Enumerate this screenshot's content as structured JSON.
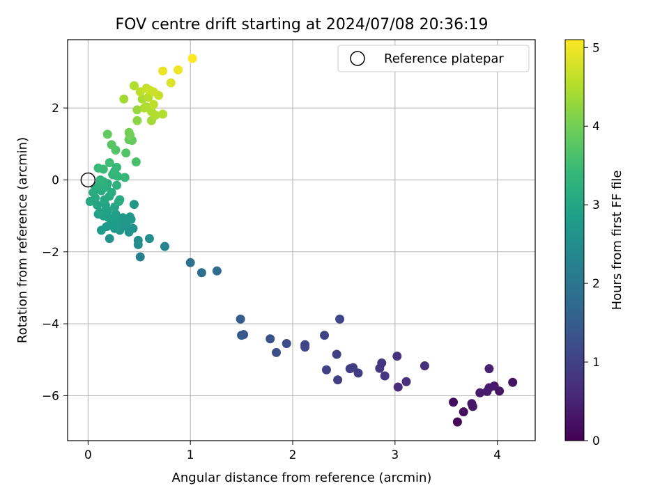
{
  "chart_data": {
    "type": "scatter",
    "title": "FOV centre drift starting at 2024/07/08 20:36:19",
    "xlabel": "Angular distance from reference (arcmin)",
    "ylabel": "Rotation from reference (arcmin)",
    "xlim": [
      -0.2,
      4.37
    ],
    "ylim": [
      -7.25,
      3.9
    ],
    "xticks": [
      0,
      1,
      2,
      3,
      4
    ],
    "xtick_labels": [
      "0",
      "1",
      "2",
      "3",
      "4"
    ],
    "yticks": [
      -6,
      -4,
      -2,
      0,
      2
    ],
    "ytick_labels": [
      "−6",
      "−4",
      "−2",
      "0",
      "2"
    ],
    "grid": true,
    "legend": {
      "position": "top-right",
      "label": "Reference platepar"
    },
    "reference_point": {
      "x": 0,
      "y": 0
    },
    "colorbar": {
      "label": "Hours from first FF file",
      "colormap": "viridis",
      "range": [
        0,
        5.1
      ],
      "ticks": [
        0,
        1,
        2,
        3,
        4,
        5
      ],
      "tick_labels": [
        "0",
        "1",
        "2",
        "3",
        "4",
        "5"
      ],
      "stops": [
        "#440154",
        "#482878",
        "#3e4989",
        "#31688e",
        "#26828e",
        "#1f9e89",
        "#35b779",
        "#6ece58",
        "#b5de2b",
        "#fde725"
      ]
    },
    "points": [
      {
        "x": 4.15,
        "y": -5.63,
        "h": 0.25
      },
      {
        "x": 4.02,
        "y": -5.87,
        "h": 0.3
      },
      {
        "x": 3.97,
        "y": -5.73,
        "h": 0.35
      },
      {
        "x": 3.92,
        "y": -5.78,
        "h": 0.35
      },
      {
        "x": 3.9,
        "y": -5.88,
        "h": 0.4
      },
      {
        "x": 3.92,
        "y": -5.25,
        "h": 0.45
      },
      {
        "x": 3.83,
        "y": -5.92,
        "h": 0.4
      },
      {
        "x": 3.75,
        "y": -6.22,
        "h": 0.3
      },
      {
        "x": 3.76,
        "y": -6.3,
        "h": 0.3
      },
      {
        "x": 3.67,
        "y": -6.45,
        "h": 0.2
      },
      {
        "x": 3.57,
        "y": -6.18,
        "h": 0.15
      },
      {
        "x": 3.61,
        "y": -6.73,
        "h": 0.1
      },
      {
        "x": 3.29,
        "y": -5.17,
        "h": 0.7
      },
      {
        "x": 3.11,
        "y": -5.61,
        "h": 0.7
      },
      {
        "x": 3.03,
        "y": -5.76,
        "h": 0.65
      },
      {
        "x": 3.02,
        "y": -4.9,
        "h": 0.75
      },
      {
        "x": 2.9,
        "y": -5.45,
        "h": 0.8
      },
      {
        "x": 2.87,
        "y": -5.09,
        "h": 0.8
      },
      {
        "x": 2.85,
        "y": -5.24,
        "h": 0.8
      },
      {
        "x": 2.64,
        "y": -5.37,
        "h": 0.9
      },
      {
        "x": 2.59,
        "y": -5.22,
        "h": 0.95
      },
      {
        "x": 2.56,
        "y": -5.25,
        "h": 0.95
      },
      {
        "x": 2.44,
        "y": -5.56,
        "h": 0.95
      },
      {
        "x": 2.43,
        "y": -4.85,
        "h": 1.0
      },
      {
        "x": 2.46,
        "y": -3.87,
        "h": 1.1
      },
      {
        "x": 2.33,
        "y": -5.28,
        "h": 1.0
      },
      {
        "x": 2.31,
        "y": -4.32,
        "h": 1.05
      },
      {
        "x": 2.12,
        "y": -4.58,
        "h": 1.1
      },
      {
        "x": 2.12,
        "y": -4.65,
        "h": 1.1
      },
      {
        "x": 1.94,
        "y": -4.55,
        "h": 1.2
      },
      {
        "x": 1.84,
        "y": -4.8,
        "h": 1.25
      },
      {
        "x": 1.78,
        "y": -4.42,
        "h": 1.3
      },
      {
        "x": 1.52,
        "y": -4.3,
        "h": 1.4
      },
      {
        "x": 1.5,
        "y": -4.32,
        "h": 1.45
      },
      {
        "x": 1.49,
        "y": -3.87,
        "h": 1.5
      },
      {
        "x": 1.26,
        "y": -2.53,
        "h": 1.8
      },
      {
        "x": 1.11,
        "y": -2.58,
        "h": 1.85
      },
      {
        "x": 1.0,
        "y": -2.3,
        "h": 1.9
      },
      {
        "x": 0.75,
        "y": -1.85,
        "h": 2.3
      },
      {
        "x": 0.6,
        "y": -1.63,
        "h": 2.5
      },
      {
        "x": 0.51,
        "y": -2.14,
        "h": 2.2
      },
      {
        "x": 0.49,
        "y": -1.68,
        "h": 2.5
      },
      {
        "x": 0.49,
        "y": -1.8,
        "h": 2.5
      },
      {
        "x": 0.45,
        "y": -0.68,
        "h": 2.7
      },
      {
        "x": 0.44,
        "y": -1.35,
        "h": 2.6
      },
      {
        "x": 0.42,
        "y": -1.1,
        "h": 2.65
      },
      {
        "x": 0.41,
        "y": -1.03,
        "h": 2.7
      },
      {
        "x": 0.4,
        "y": -1.45,
        "h": 2.6
      },
      {
        "x": 0.38,
        "y": -1.3,
        "h": 2.65
      },
      {
        "x": 0.36,
        "y": -1.2,
        "h": 2.7
      },
      {
        "x": 0.34,
        "y": -1.05,
        "h": 2.7
      },
      {
        "x": 0.31,
        "y": -1.4,
        "h": 2.65
      },
      {
        "x": 0.29,
        "y": -1.25,
        "h": 2.75
      },
      {
        "x": 0.28,
        "y": -1.1,
        "h": 2.8
      },
      {
        "x": 0.27,
        "y": -0.95,
        "h": 2.85
      },
      {
        "x": 0.26,
        "y": -1.35,
        "h": 2.75
      },
      {
        "x": 0.24,
        "y": -1.15,
        "h": 2.8
      },
      {
        "x": 0.22,
        "y": -1.25,
        "h": 2.8
      },
      {
        "x": 0.21,
        "y": -1.63,
        "h": 2.6
      },
      {
        "x": 0.2,
        "y": -1.05,
        "h": 2.85
      },
      {
        "x": 0.19,
        "y": -0.85,
        "h": 2.9
      },
      {
        "x": 0.18,
        "y": -1.3,
        "h": 2.8
      },
      {
        "x": 0.17,
        "y": -0.7,
        "h": 2.95
      },
      {
        "x": 0.15,
        "y": -1.0,
        "h": 2.9
      },
      {
        "x": 0.13,
        "y": -1.4,
        "h": 2.8
      },
      {
        "x": 0.12,
        "y": -0.9,
        "h": 2.95
      },
      {
        "x": 0.1,
        "y": -0.95,
        "h": 2.9
      },
      {
        "x": 0.09,
        "y": -0.7,
        "h": 3.0
      },
      {
        "x": 0.07,
        "y": -0.5,
        "h": 3.05
      },
      {
        "x": 0.05,
        "y": -0.35,
        "h": 3.1
      },
      {
        "x": 0.02,
        "y": -0.6,
        "h": 3.05
      },
      {
        "x": 0.07,
        "y": -0.25,
        "h": 3.15
      },
      {
        "x": 0.1,
        "y": -0.15,
        "h": 3.2
      },
      {
        "x": 0.13,
        "y": -0.3,
        "h": 3.15
      },
      {
        "x": 0.15,
        "y": -0.05,
        "h": 3.25
      },
      {
        "x": 0.18,
        "y": -0.2,
        "h": 3.2
      },
      {
        "x": 0.21,
        "y": -0.45,
        "h": 3.1
      },
      {
        "x": 0.23,
        "y": -0.35,
        "h": 3.15
      },
      {
        "x": 0.26,
        "y": -0.75,
        "h": 3.0
      },
      {
        "x": 0.28,
        "y": -0.15,
        "h": 3.25
      },
      {
        "x": 0.3,
        "y": -0.6,
        "h": 3.1
      },
      {
        "x": 0.31,
        "y": -0.55,
        "h": 3.1
      },
      {
        "x": 0.12,
        "y": 0.0,
        "h": 3.3
      },
      {
        "x": 0.16,
        "y": -0.55,
        "h": 3.05
      },
      {
        "x": 0.19,
        "y": -0.1,
        "h": 3.2
      },
      {
        "x": 0.24,
        "y": 0.15,
        "h": 3.35
      },
      {
        "x": 0.28,
        "y": 0.35,
        "h": 3.4
      },
      {
        "x": 0.1,
        "y": 0.33,
        "h": 3.45
      },
      {
        "x": 0.15,
        "y": 0.3,
        "h": 3.45
      },
      {
        "x": 0.21,
        "y": 0.48,
        "h": 3.5
      },
      {
        "x": 0.26,
        "y": 0.25,
        "h": 3.4
      },
      {
        "x": 0.29,
        "y": 0.1,
        "h": 3.35
      },
      {
        "x": 0.36,
        "y": 0.07,
        "h": 3.4
      },
      {
        "x": 0.47,
        "y": 0.5,
        "h": 3.6
      },
      {
        "x": 0.23,
        "y": 0.98,
        "h": 3.75
      },
      {
        "x": 0.27,
        "y": 0.83,
        "h": 3.7
      },
      {
        "x": 0.37,
        "y": 0.75,
        "h": 3.7
      },
      {
        "x": 0.19,
        "y": 1.27,
        "h": 3.85
      },
      {
        "x": 0.43,
        "y": 1.1,
        "h": 3.85
      },
      {
        "x": 0.4,
        "y": 1.12,
        "h": 3.9
      },
      {
        "x": 0.4,
        "y": 1.32,
        "h": 4.0
      },
      {
        "x": 0.41,
        "y": 1.25,
        "h": 4.0
      },
      {
        "x": 0.48,
        "y": 1.65,
        "h": 4.2
      },
      {
        "x": 0.48,
        "y": 1.95,
        "h": 4.3
      },
      {
        "x": 0.35,
        "y": 2.25,
        "h": 4.4
      },
      {
        "x": 0.45,
        "y": 2.62,
        "h": 4.5
      },
      {
        "x": 0.53,
        "y": 2.25,
        "h": 4.45
      },
      {
        "x": 0.57,
        "y": 2.03,
        "h": 4.4
      },
      {
        "x": 0.59,
        "y": 2.3,
        "h": 4.55
      },
      {
        "x": 0.62,
        "y": 1.65,
        "h": 4.4
      },
      {
        "x": 0.62,
        "y": 1.9,
        "h": 4.5
      },
      {
        "x": 0.64,
        "y": 2.1,
        "h": 4.6
      },
      {
        "x": 0.66,
        "y": 1.8,
        "h": 4.5
      },
      {
        "x": 0.69,
        "y": 2.35,
        "h": 4.65
      },
      {
        "x": 0.73,
        "y": 1.83,
        "h": 4.5
      },
      {
        "x": 0.51,
        "y": 2.45,
        "h": 4.6
      },
      {
        "x": 0.57,
        "y": 2.55,
        "h": 4.65
      },
      {
        "x": 0.6,
        "y": 2.5,
        "h": 4.7
      },
      {
        "x": 0.64,
        "y": 2.45,
        "h": 4.7
      },
      {
        "x": 0.55,
        "y": 2.0,
        "h": 4.5
      },
      {
        "x": 0.73,
        "y": 3.03,
        "h": 4.95
      },
      {
        "x": 0.81,
        "y": 2.7,
        "h": 4.85
      },
      {
        "x": 0.88,
        "y": 3.06,
        "h": 5.0
      },
      {
        "x": 1.02,
        "y": 3.38,
        "h": 5.1
      }
    ]
  }
}
